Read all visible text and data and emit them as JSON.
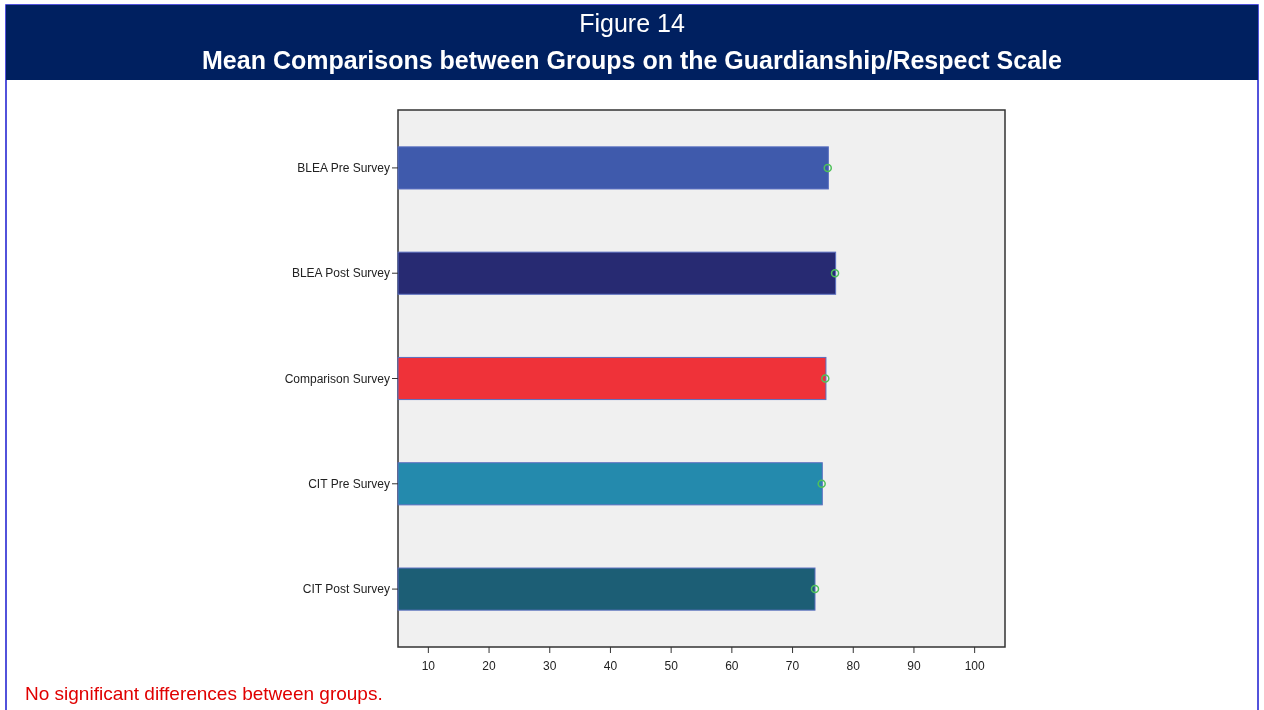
{
  "chart_data": {
    "type": "bar",
    "orientation": "horizontal",
    "title": "Figure 14",
    "subtitle": "Mean Comparisons between Groups on the Guardianship/Respect Scale",
    "categories": [
      "BLEA Pre Survey",
      "BLEA Post Survey",
      "Comparison Survey",
      "CIT Pre Survey",
      "CIT Post Survey"
    ],
    "series": [
      {
        "colors": [
          "#3f5aac",
          "#272a72",
          "#ef3239",
          "#248aad",
          "#1c5e75"
        ],
        "values": [
          75.9,
          77.1,
          75.5,
          74.9,
          73.7
        ]
      },
      {
        "type": "scatter",
        "color": "#4fc15a",
        "x": [
          "BLEA Pre Survey",
          "BLEA Post Survey",
          "Comparison Survey",
          "CIT Pre Survey",
          "CIT Post Survey"
        ],
        "values": [
          75.8,
          77.0,
          75.4,
          74.8,
          73.7
        ]
      }
    ],
    "xlim": [
      5,
      105
    ],
    "xticks": [
      10,
      20,
      30,
      40,
      50,
      60,
      70,
      80,
      90,
      100
    ],
    "grid": false,
    "marker": "circle",
    "annotations": [
      "No significant differences between groups."
    ]
  }
}
